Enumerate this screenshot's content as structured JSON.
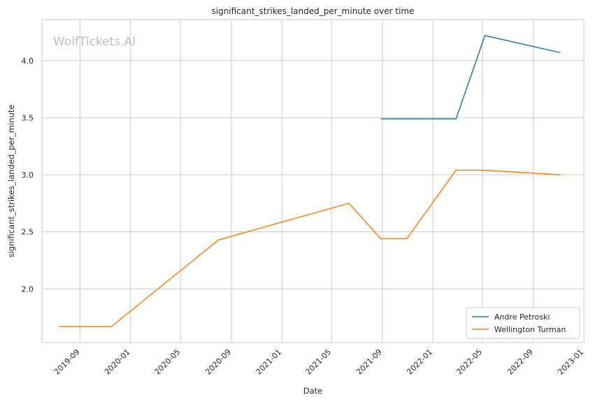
{
  "chart_data": {
    "type": "line",
    "title": "significant_strikes_landed_per_minute over time",
    "xlabel": "Date",
    "ylabel": "significant_strikes_landed_per_minute",
    "watermark": "WolfTickets.AI",
    "xlim": [
      "2019-06-01",
      "2023-01-01"
    ],
    "ylim": [
      1.53,
      4.36
    ],
    "x_ticks": [
      "2019-09",
      "2020-01",
      "2020-05",
      "2020-09",
      "2021-01",
      "2021-05",
      "2021-09",
      "2022-01",
      "2022-05",
      "2022-09",
      "2023-01"
    ],
    "y_ticks": [
      "2.0",
      "2.5",
      "3.0",
      "3.5",
      "4.0"
    ],
    "grid": true,
    "legend_position": "lower-right",
    "series": [
      {
        "name": "Andre Petroski",
        "color": "#1f77b4",
        "points": [
          {
            "x": "2021-08-28",
            "y": 3.49
          },
          {
            "x": "2022-02-26",
            "y": 3.49
          },
          {
            "x": "2022-05-07",
            "y": 4.22
          },
          {
            "x": "2022-11-05",
            "y": 4.07
          }
        ]
      },
      {
        "name": "Wellington Turman",
        "color": "#ff7f0e",
        "points": [
          {
            "x": "2019-07-13",
            "y": 1.67
          },
          {
            "x": "2019-11-16",
            "y": 1.67
          },
          {
            "x": "2020-08-01",
            "y": 2.43
          },
          {
            "x": "2021-06-12",
            "y": 2.75
          },
          {
            "x": "2021-08-28",
            "y": 2.44
          },
          {
            "x": "2021-10-30",
            "y": 2.44
          },
          {
            "x": "2022-02-26",
            "y": 3.04
          },
          {
            "x": "2022-05-07",
            "y": 3.04
          },
          {
            "x": "2022-11-05",
            "y": 3.0
          }
        ]
      }
    ]
  }
}
